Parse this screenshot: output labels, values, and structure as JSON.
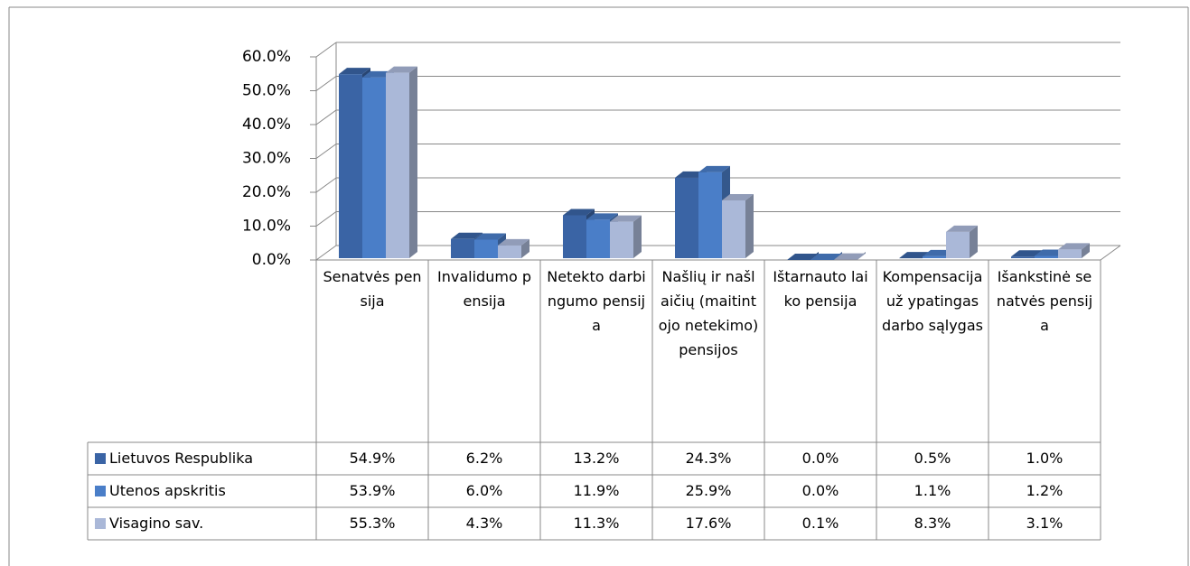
{
  "chart_data": {
    "type": "bar3d",
    "categories": [
      "Senatvės pensija",
      "Invalidumo pensija",
      "Netekto darbingumo pensija",
      "Našlių ir našlaičių (maitintojo netekimo) pensijos",
      "Ištarnauto laiko pensija",
      "Kompensacija už ypatingas darbo sąlygas",
      "Išankstinė senatvės pensija"
    ],
    "series": [
      {
        "name": "Lietuvos Respublika",
        "color": "#3a64a5",
        "values": [
          54.9,
          6.2,
          13.2,
          24.3,
          0.0,
          0.5,
          1.0
        ],
        "value_labels": [
          "54.9%",
          "6.2%",
          "13.2%",
          "24.3%",
          "0.0%",
          "0.5%",
          "1.0%"
        ]
      },
      {
        "name": "Utenos apskritis",
        "color": "#4a7ec8",
        "values": [
          53.9,
          6.0,
          11.9,
          25.9,
          0.0,
          1.1,
          1.2
        ],
        "value_labels": [
          "53.9%",
          "6.0%",
          "11.9%",
          "25.9%",
          "0.0%",
          "1.1%",
          "1.2%"
        ]
      },
      {
        "name": "Visagino sav.",
        "color": "#aab8d8",
        "values": [
          55.3,
          4.3,
          11.3,
          17.6,
          0.1,
          8.3,
          3.1
        ],
        "value_labels": [
          "55.3%",
          "4.3%",
          "11.3%",
          "17.6%",
          "0.1%",
          "8.3%",
          "3.1%"
        ]
      }
    ],
    "ylim": [
      0,
      60
    ],
    "yticks": [
      {
        "value": 0,
        "label": "0.0%"
      },
      {
        "value": 10,
        "label": "10.0%"
      },
      {
        "value": 20,
        "label": "20.0%"
      },
      {
        "value": 30,
        "label": "30.0%"
      },
      {
        "value": 40,
        "label": "40.0%"
      },
      {
        "value": 50,
        "label": "50.0%"
      },
      {
        "value": 60,
        "label": "60.0%"
      }
    ],
    "grid": true
  }
}
